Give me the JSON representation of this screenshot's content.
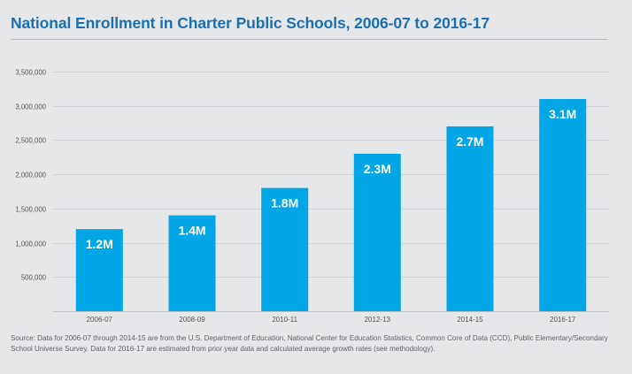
{
  "title": "National Enrollment in Charter Public Schools, 2006-07 to 2016-17",
  "source_note": "Source: Data for 2006-07 through 2014-15 are from the U.S. Department of Education, National Center for Education Statistics, Common Core of Data (CCD), Public Elementary/Secondary School Universe Survey. Data for 2016-17 are estimated from prior year data and calculated average growth rates (see methodology).",
  "colors": {
    "bar": "#00a6e6",
    "title": "#1b6fb0",
    "background": "#e6e7e9",
    "grid": "#d0d2d5",
    "axis_text": "#555555",
    "data_label": "#ffffff"
  },
  "chart_data": {
    "type": "bar",
    "title": "National Enrollment in Charter Public Schools, 2006-07 to 2016-17",
    "xlabel": "",
    "ylabel": "",
    "categories": [
      "2006-07",
      "2008-09",
      "2010-11",
      "2012-13",
      "2014-15",
      "2016-17"
    ],
    "values": [
      1200000,
      1400000,
      1800000,
      2300000,
      2700000,
      3100000
    ],
    "data_labels": [
      "1.2M",
      "1.4M",
      "1.8M",
      "2.3M",
      "2.7M",
      "3.1M"
    ],
    "ylim": [
      0,
      3500000
    ],
    "yticks": [
      500000,
      1000000,
      1500000,
      2000000,
      2500000,
      3000000,
      3500000
    ],
    "ytick_labels": [
      "500,000",
      "1,000,000",
      "1,500,000",
      "2,000,000",
      "2,500,000",
      "3,000,000",
      "3,500,000"
    ],
    "grid": true,
    "legend": "none"
  }
}
